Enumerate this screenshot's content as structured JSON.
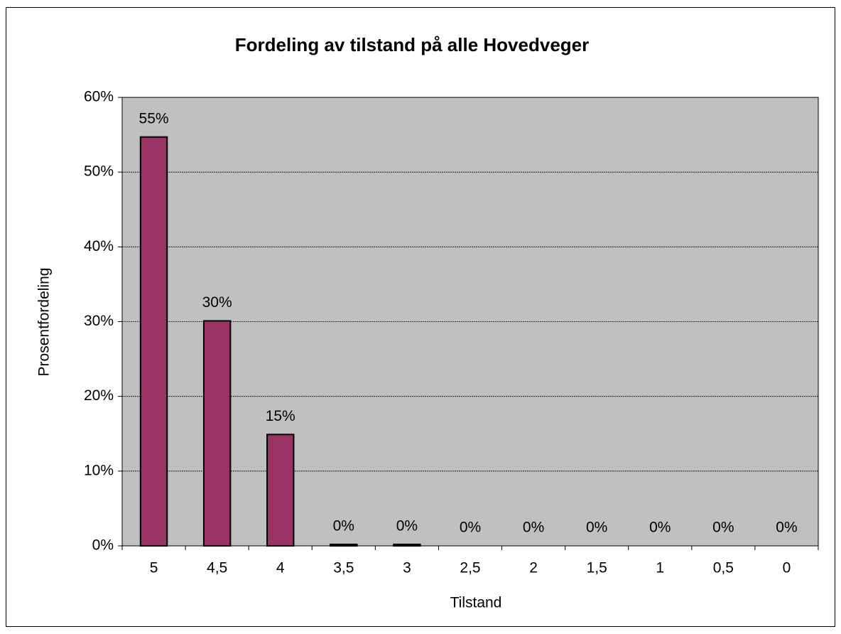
{
  "chart_data": {
    "type": "bar",
    "title": "Fordeling av tilstand på alle Hovedveger",
    "x_label": "Tilstand",
    "y_label": "Prosentfordeling",
    "categories": [
      "5",
      "4,5",
      "4",
      "3,5",
      "3",
      "2,5",
      "2",
      "1,5",
      "1",
      "0,5",
      "0"
    ],
    "values": [
      54.7,
      30.1,
      14.9,
      0.2,
      0.2,
      0,
      0,
      0,
      0,
      0,
      0
    ],
    "value_labels": [
      "55%",
      "30%",
      "15%",
      "0%",
      "0%",
      "0%",
      "0%",
      "0%",
      "0%",
      "0%",
      "0%"
    ],
    "color": "#993366",
    "ylim": [
      0,
      60
    ],
    "yticks": [
      {
        "value": 0,
        "label": "0%"
      },
      {
        "value": 10,
        "label": "10%"
      },
      {
        "value": 20,
        "label": "20%"
      },
      {
        "value": 30,
        "label": "30%"
      },
      {
        "value": 40,
        "label": "40%"
      },
      {
        "value": 50,
        "label": "50%"
      },
      {
        "value": 60,
        "label": "60%"
      }
    ],
    "grid": true
  }
}
